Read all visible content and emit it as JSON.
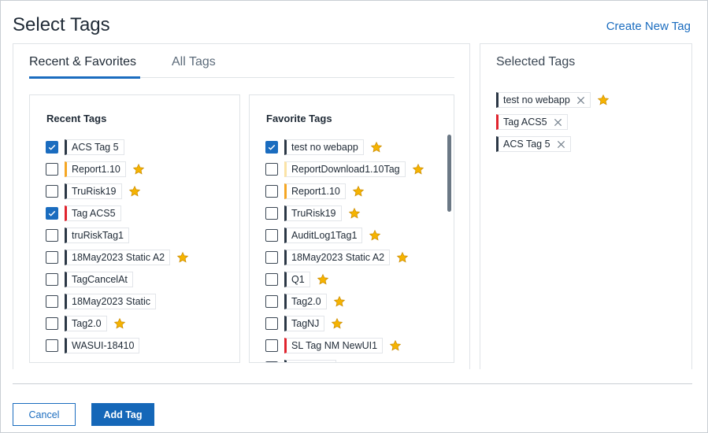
{
  "dialog": {
    "title": "Select Tags",
    "create_link": "Create New Tag"
  },
  "tabs": [
    {
      "label": "Recent & Favorites",
      "active": true
    },
    {
      "label": "All Tags",
      "active": false
    }
  ],
  "recent": {
    "title": "Recent Tags",
    "items": [
      {
        "label": "ACS Tag 5",
        "checked": true,
        "color": "#2b3745",
        "favorite": false
      },
      {
        "label": "Report1.10",
        "checked": false,
        "color": "#f5a623",
        "favorite": true
      },
      {
        "label": "TruRisk19",
        "checked": false,
        "color": "#2b3745",
        "favorite": true
      },
      {
        "label": "Tag ACS5",
        "checked": true,
        "color": "#e0242e",
        "favorite": false
      },
      {
        "label": "truRiskTag1",
        "checked": false,
        "color": "#2b3745",
        "favorite": false
      },
      {
        "label": "18May2023 Static A2",
        "checked": false,
        "color": "#2b3745",
        "favorite": true
      },
      {
        "label": "TagCancelAt",
        "checked": false,
        "color": "#2b3745",
        "favorite": false
      },
      {
        "label": "18May2023 Static",
        "checked": false,
        "color": "#2b3745",
        "favorite": false
      },
      {
        "label": "Tag2.0",
        "checked": false,
        "color": "#2b3745",
        "favorite": true
      },
      {
        "label": "WASUI-18410",
        "checked": false,
        "color": "#2b3745",
        "favorite": false
      }
    ]
  },
  "favorite": {
    "title": "Favorite Tags",
    "items": [
      {
        "label": "test no webapp",
        "checked": true,
        "color": "#2b3745",
        "favorite": true
      },
      {
        "label": "ReportDownload1.10Tag",
        "checked": false,
        "color": "#fbe3a6",
        "favorite": true
      },
      {
        "label": "Report1.10",
        "checked": false,
        "color": "#f5a623",
        "favorite": true
      },
      {
        "label": "TruRisk19",
        "checked": false,
        "color": "#2b3745",
        "favorite": true
      },
      {
        "label": "AuditLog1Tag1",
        "checked": false,
        "color": "#2b3745",
        "favorite": true
      },
      {
        "label": "18May2023 Static A2",
        "checked": false,
        "color": "#2b3745",
        "favorite": true
      },
      {
        "label": "Q1",
        "checked": false,
        "color": "#2b3745",
        "favorite": true
      },
      {
        "label": "Tag2.0",
        "checked": false,
        "color": "#2b3745",
        "favorite": true
      },
      {
        "label": "TagNJ",
        "checked": false,
        "color": "#2b3745",
        "favorite": true
      },
      {
        "label": "SL Tag NM NewUI1",
        "checked": false,
        "color": "#e0242e",
        "favorite": true
      },
      {
        "label": "",
        "checked": false,
        "color": "#2b3745",
        "favorite": true
      }
    ]
  },
  "selected": {
    "title": "Selected Tags",
    "items": [
      {
        "label": "test no webapp",
        "color": "#2b3745",
        "favorite": true
      },
      {
        "label": "Tag ACS5",
        "color": "#e0242e",
        "favorite": false
      },
      {
        "label": "ACS Tag 5",
        "color": "#2b3745",
        "favorite": false
      }
    ]
  },
  "footer": {
    "cancel_label": "Cancel",
    "add_label": "Add Tag"
  },
  "colors": {
    "accent": "#1a6cbf",
    "star": "#f5b301"
  }
}
